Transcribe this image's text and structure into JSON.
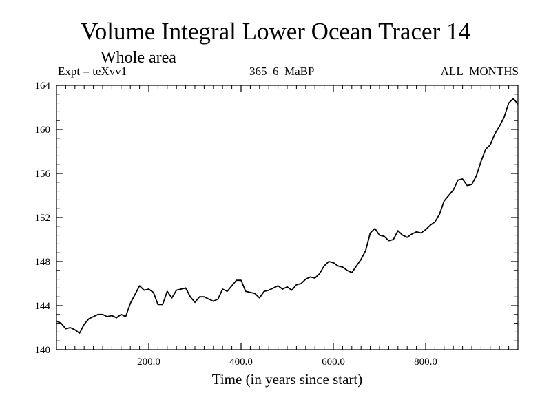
{
  "chart_data": {
    "type": "line",
    "title": "Volume Integral Lower Ocean Tracer 14",
    "subtitle": "Whole area",
    "experiment_label": "Expt = teXvv1",
    "run_label": "365_6_MaBP",
    "months_label": "ALL_MONTHS",
    "xlabel": "Time (in years since start)",
    "ylabel": "",
    "xlim": [
      0,
      1000
    ],
    "ylim": [
      140,
      164
    ],
    "x_ticks": [
      200,
      400,
      600,
      800
    ],
    "x_tick_labels": [
      "200.0",
      "400.0",
      "600.0",
      "800.0"
    ],
    "y_ticks": [
      140,
      144,
      148,
      152,
      156,
      160,
      164
    ],
    "y_tick_labels": [
      "140",
      "144",
      "148",
      "152",
      "156",
      "160",
      "164"
    ],
    "grid": false,
    "series": [
      {
        "name": "Lower Ocean Tracer 14",
        "x": [
          0,
          10,
          20,
          30,
          40,
          50,
          60,
          70,
          80,
          90,
          100,
          110,
          120,
          130,
          140,
          150,
          160,
          170,
          180,
          190,
          200,
          210,
          220,
          230,
          240,
          250,
          260,
          270,
          280,
          290,
          300,
          310,
          320,
          330,
          340,
          350,
          360,
          370,
          380,
          390,
          400,
          410,
          420,
          430,
          440,
          450,
          460,
          470,
          480,
          490,
          500,
          510,
          520,
          530,
          540,
          550,
          560,
          570,
          580,
          590,
          600,
          610,
          620,
          630,
          640,
          650,
          660,
          670,
          680,
          690,
          700,
          710,
          720,
          730,
          740,
          750,
          760,
          770,
          780,
          790,
          800,
          810,
          820,
          830,
          840,
          850,
          860,
          870,
          880,
          890,
          900,
          910,
          920,
          930,
          940,
          950,
          960,
          970,
          980,
          990,
          1000
        ],
        "values": [
          142.6,
          142.4,
          141.9,
          142.0,
          141.8,
          141.5,
          142.3,
          142.8,
          143.0,
          143.2,
          143.2,
          143.0,
          143.1,
          142.9,
          143.2,
          143.0,
          144.2,
          145.0,
          145.8,
          145.4,
          145.5,
          145.2,
          144.1,
          144.1,
          145.3,
          144.7,
          145.4,
          145.5,
          145.6,
          144.8,
          144.3,
          144.8,
          144.8,
          144.6,
          144.4,
          144.6,
          145.5,
          145.3,
          145.8,
          146.3,
          146.3,
          145.3,
          145.2,
          145.1,
          144.7,
          145.3,
          145.4,
          145.6,
          145.8,
          145.5,
          145.7,
          145.4,
          145.9,
          146.0,
          146.4,
          146.6,
          146.5,
          146.9,
          147.6,
          148.0,
          147.9,
          147.6,
          147.5,
          147.2,
          147.0,
          147.6,
          148.2,
          149.0,
          150.6,
          151.0,
          150.4,
          150.3,
          149.9,
          150.0,
          150.8,
          150.4,
          150.2,
          150.5,
          150.7,
          150.6,
          150.9,
          151.3,
          151.6,
          152.3,
          153.5,
          154.0,
          154.5,
          155.4,
          155.5,
          154.9,
          155.0,
          155.8,
          157.1,
          158.2,
          158.6,
          159.6,
          160.3,
          161.1,
          162.4,
          162.8,
          162.3
        ]
      }
    ]
  }
}
